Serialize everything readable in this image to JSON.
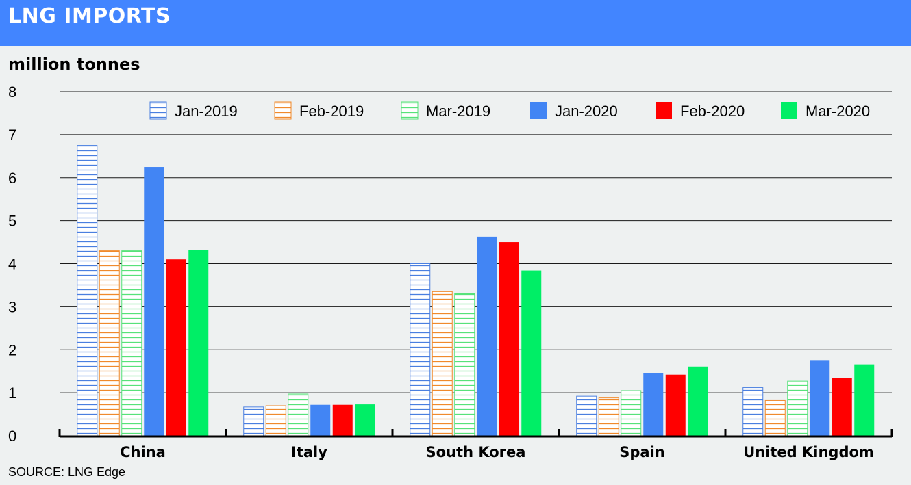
{
  "header": {
    "title": "LNG IMPORTS"
  },
  "chart_data": {
    "type": "bar",
    "ylabel": "million tonnes",
    "ylim": [
      0,
      8
    ],
    "yticks": [
      0,
      1,
      2,
      3,
      4,
      5,
      6,
      7,
      8
    ],
    "grid": true,
    "legend_position": "top",
    "categories": [
      "China",
      "Italy",
      "South Korea",
      "Spain",
      "United Kingdom"
    ],
    "series": [
      {
        "name": "Jan-2019",
        "color": "#4a7fe0",
        "style": "hatched",
        "values": [
          6.75,
          0.67,
          4.0,
          0.92,
          1.12
        ]
      },
      {
        "name": "Feb-2019",
        "color": "#f08a2c",
        "style": "hatched",
        "values": [
          4.3,
          0.7,
          3.35,
          0.88,
          0.82
        ]
      },
      {
        "name": "Mar-2019",
        "color": "#57e27a",
        "style": "hatched",
        "values": [
          4.3,
          0.97,
          3.3,
          1.05,
          1.27
        ]
      },
      {
        "name": "Jan-2020",
        "color": "#4285f4",
        "style": "solid",
        "values": [
          6.25,
          0.72,
          4.63,
          1.45,
          1.76
        ]
      },
      {
        "name": "Feb-2020",
        "color": "#ff0000",
        "style": "solid",
        "values": [
          4.1,
          0.72,
          4.5,
          1.42,
          1.34
        ]
      },
      {
        "name": "Mar-2020",
        "color": "#00ee66",
        "style": "solid",
        "values": [
          4.32,
          0.73,
          3.84,
          1.61,
          1.66
        ]
      }
    ]
  },
  "footer": {
    "source": "SOURCE: LNG Edge"
  }
}
